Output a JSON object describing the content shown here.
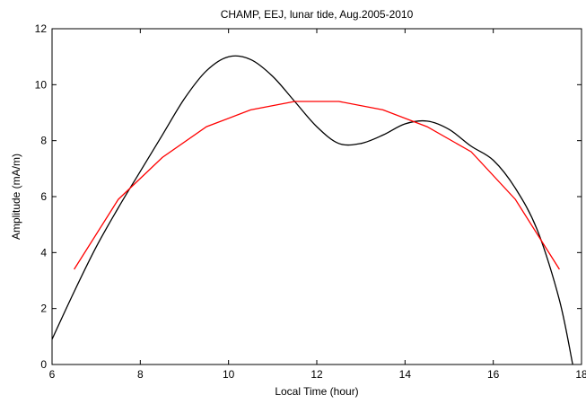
{
  "chart_data": {
    "type": "line",
    "title": "CHAMP, EEJ, lunar tide, Aug.2005-2010",
    "xlabel": "Local Time (hour)",
    "ylabel": "Amplitude (mA/m)",
    "xlim": [
      6,
      18
    ],
    "ylim": [
      0,
      12
    ],
    "xticks": [
      6,
      8,
      10,
      12,
      14,
      16,
      18
    ],
    "yticks": [
      0,
      2,
      4,
      6,
      8,
      10,
      12
    ],
    "grid": false,
    "legend": "none",
    "series": [
      {
        "color": "#000000",
        "points": [
          [
            6.0,
            0.9
          ],
          [
            6.5,
            2.6
          ],
          [
            7.0,
            4.2
          ],
          [
            7.5,
            5.6
          ],
          [
            8.0,
            6.9
          ],
          [
            8.5,
            8.2
          ],
          [
            9.0,
            9.5
          ],
          [
            9.5,
            10.5
          ],
          [
            10.0,
            11.0
          ],
          [
            10.5,
            10.9
          ],
          [
            11.0,
            10.3
          ],
          [
            11.5,
            9.4
          ],
          [
            12.0,
            8.5
          ],
          [
            12.5,
            7.9
          ],
          [
            13.0,
            7.9
          ],
          [
            13.5,
            8.2
          ],
          [
            14.0,
            8.6
          ],
          [
            14.5,
            8.7
          ],
          [
            15.0,
            8.4
          ],
          [
            15.5,
            7.8
          ],
          [
            16.0,
            7.3
          ],
          [
            16.5,
            6.3
          ],
          [
            17.0,
            4.8
          ],
          [
            17.5,
            2.3
          ],
          [
            17.8,
            0.0
          ]
        ]
      },
      {
        "color": "#ff0000",
        "points": [
          [
            6.5,
            3.4
          ],
          [
            7.5,
            5.9
          ],
          [
            8.5,
            7.4
          ],
          [
            9.5,
            8.5
          ],
          [
            10.5,
            9.1
          ],
          [
            11.5,
            9.4
          ],
          [
            12.5,
            9.4
          ],
          [
            13.5,
            9.1
          ],
          [
            14.5,
            8.5
          ],
          [
            15.5,
            7.6
          ],
          [
            16.5,
            5.9
          ],
          [
            17.5,
            3.4
          ]
        ]
      }
    ]
  }
}
